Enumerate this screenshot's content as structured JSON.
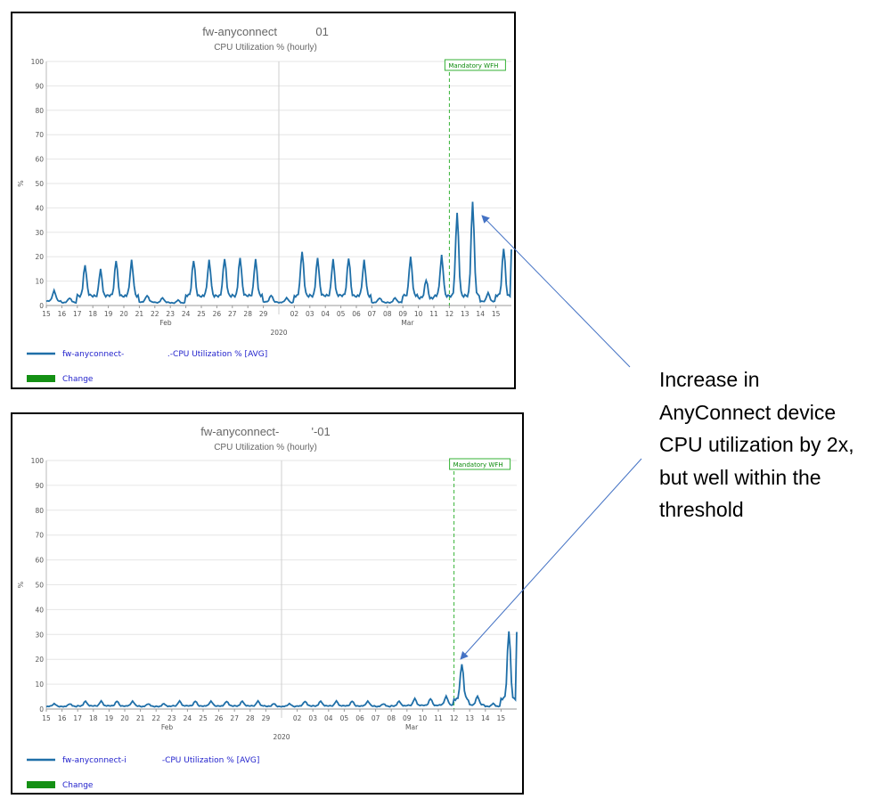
{
  "colors": {
    "series": "#1f6fa8",
    "event": "#36b236",
    "change": "#149014",
    "annotation_arrow": "#4472c4"
  },
  "annotation": {
    "lines": [
      "Increase in",
      "AnyConnect device",
      "CPU utilization by 2x,",
      "but well within the",
      "threshold"
    ]
  },
  "chart_data": [
    {
      "type": "line",
      "title": "fw-anyconnect            01",
      "subtitle": "CPU Utilization % (hourly)",
      "ylabel": "%",
      "ylim": [
        0,
        100
      ],
      "yticks": [
        "0",
        "10",
        "20",
        "30",
        "40",
        "50",
        "60",
        "70",
        "80",
        "90",
        "100"
      ],
      "xticks": [
        "15",
        "16",
        "17",
        "18",
        "19",
        "20",
        "21",
        "22",
        "23",
        "24",
        "25",
        "26",
        "27",
        "28",
        "29",
        "02",
        "03",
        "04",
        "05",
        "06",
        "07",
        "08",
        "09",
        "10",
        "11",
        "12",
        "13",
        "14",
        "15"
      ],
      "month_labels": [
        "Feb",
        "2020",
        "Mar"
      ],
      "event": {
        "label": "Mandatory WFH",
        "x": 12
      },
      "legend": [
        "fw-anyconnect-                 .-CPU Utilization % [AVG]",
        "Change"
      ],
      "series": [
        {
          "name": "fw-anyconnect-                 .-CPU Utilization % [AVG]",
          "daily_peaks": [
            6,
            3,
            16,
            14,
            18,
            18,
            4,
            3,
            2,
            18,
            18,
            19,
            19,
            18,
            4,
            3,
            22,
            19,
            18,
            19,
            18,
            3,
            3,
            19,
            10,
            20,
            38,
            42,
            5,
            23
          ]
        }
      ]
    },
    {
      "type": "line",
      "title": "fw-anyconnect-          '-01",
      "subtitle": "CPU Utilization % (hourly)",
      "ylabel": "%",
      "ylim": [
        0,
        100
      ],
      "yticks": [
        "0",
        "10",
        "20",
        "30",
        "40",
        "50",
        "60",
        "70",
        "80",
        "90",
        "100"
      ],
      "xticks": [
        "15",
        "16",
        "17",
        "18",
        "19",
        "20",
        "21",
        "22",
        "23",
        "24",
        "25",
        "26",
        "27",
        "28",
        "29",
        "02",
        "03",
        "04",
        "05",
        "06",
        "07",
        "08",
        "09",
        "10",
        "11",
        "12",
        "13",
        "14",
        "15"
      ],
      "month_labels": [
        "Feb",
        "2020",
        "Mar"
      ],
      "event": {
        "label": "Mandatory WFH",
        "x": 12
      },
      "legend": [
        "fw-anyconnect-i              -CPU Utilization % [AVG]",
        "Change"
      ],
      "series": [
        {
          "name": "fw-anyconnect-i              -CPU Utilization % [AVG]",
          "daily_peaks": [
            2,
            2,
            3,
            3,
            3,
            3,
            2,
            2,
            3,
            3,
            3,
            3,
            3,
            3,
            2,
            2,
            3,
            3,
            3,
            3,
            3,
            2,
            3,
            4,
            4,
            5,
            18,
            5,
            2,
            31
          ]
        }
      ]
    }
  ]
}
